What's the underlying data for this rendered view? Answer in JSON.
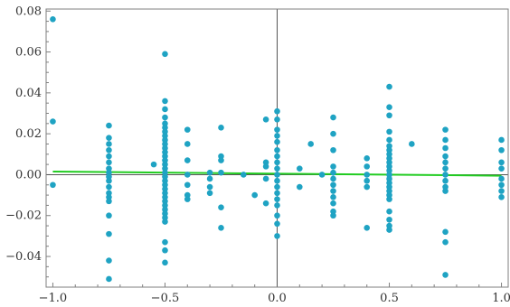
{
  "chart_data": {
    "type": "scatter",
    "title": "",
    "xlabel": "",
    "ylabel": "",
    "xlim": [
      -1.03,
      1.03
    ],
    "ylim": [
      -0.055,
      0.081
    ],
    "grid": false,
    "x_ticks": [
      {
        "value": -1.0,
        "label": "−1.0"
      },
      {
        "value": -0.5,
        "label": "−0.5"
      },
      {
        "value": 0.0,
        "label": "0.0"
      },
      {
        "value": 0.5,
        "label": "0.5"
      },
      {
        "value": 1.0,
        "label": "1.0"
      }
    ],
    "y_ticks": [
      {
        "value": 0.08,
        "label": "0.08"
      },
      {
        "value": 0.06,
        "label": "0.06"
      },
      {
        "value": 0.04,
        "label": "0.04"
      },
      {
        "value": 0.02,
        "label": "0.02"
      },
      {
        "value": 0.0,
        "label": "0.00"
      },
      {
        "value": -0.02,
        "label": "−0.02"
      },
      {
        "value": -0.04,
        "label": "−0.04"
      }
    ],
    "point_color": "#1fa3c3",
    "fit_color": "#22cc22",
    "fit_line": {
      "x": [
        -1.0,
        1.0
      ],
      "y": [
        0.0015,
        -0.0005
      ]
    },
    "points": [
      [
        -1.0,
        0.076
      ],
      [
        -1.0,
        0.026
      ],
      [
        -1.0,
        -0.005
      ],
      [
        -0.75,
        0.024
      ],
      [
        -0.75,
        0.018
      ],
      [
        -0.75,
        0.015
      ],
      [
        -0.75,
        0.012
      ],
      [
        -0.75,
        0.009
      ],
      [
        -0.75,
        0.006
      ],
      [
        -0.75,
        0.003
      ],
      [
        -0.75,
        0.001
      ],
      [
        -0.75,
        -0.001
      ],
      [
        -0.75,
        -0.003
      ],
      [
        -0.75,
        -0.006
      ],
      [
        -0.75,
        -0.009
      ],
      [
        -0.75,
        -0.011
      ],
      [
        -0.75,
        -0.013
      ],
      [
        -0.75,
        -0.02
      ],
      [
        -0.75,
        -0.029
      ],
      [
        -0.75,
        -0.042
      ],
      [
        -0.75,
        -0.051
      ],
      [
        -0.55,
        0.005
      ],
      [
        -0.5,
        0.059
      ],
      [
        -0.5,
        0.036
      ],
      [
        -0.5,
        0.032
      ],
      [
        -0.5,
        0.028
      ],
      [
        -0.5,
        0.025
      ],
      [
        -0.5,
        0.023
      ],
      [
        -0.5,
        0.021
      ],
      [
        -0.5,
        0.019
      ],
      [
        -0.5,
        0.017
      ],
      [
        -0.5,
        0.015
      ],
      [
        -0.5,
        0.013
      ],
      [
        -0.5,
        0.011
      ],
      [
        -0.5,
        0.009
      ],
      [
        -0.5,
        0.007
      ],
      [
        -0.5,
        0.005
      ],
      [
        -0.5,
        0.003
      ],
      [
        -0.5,
        0.001
      ],
      [
        -0.5,
        -0.001
      ],
      [
        -0.5,
        -0.003
      ],
      [
        -0.5,
        -0.005
      ],
      [
        -0.5,
        -0.007
      ],
      [
        -0.5,
        -0.009
      ],
      [
        -0.5,
        -0.011
      ],
      [
        -0.5,
        -0.013
      ],
      [
        -0.5,
        -0.015
      ],
      [
        -0.5,
        -0.017
      ],
      [
        -0.5,
        -0.019
      ],
      [
        -0.5,
        -0.021
      ],
      [
        -0.5,
        -0.023
      ],
      [
        -0.5,
        -0.033
      ],
      [
        -0.5,
        -0.037
      ],
      [
        -0.5,
        -0.043
      ],
      [
        -0.4,
        0.022
      ],
      [
        -0.4,
        0.015
      ],
      [
        -0.4,
        0.007
      ],
      [
        -0.4,
        0.0
      ],
      [
        -0.4,
        -0.005
      ],
      [
        -0.4,
        -0.01
      ],
      [
        -0.4,
        -0.012
      ],
      [
        -0.3,
        0.001
      ],
      [
        -0.3,
        -0.002
      ],
      [
        -0.3,
        -0.006
      ],
      [
        -0.3,
        -0.009
      ],
      [
        -0.25,
        0.023
      ],
      [
        -0.25,
        0.009
      ],
      [
        -0.25,
        0.007
      ],
      [
        -0.25,
        0.001
      ],
      [
        -0.25,
        -0.016
      ],
      [
        -0.25,
        -0.026
      ],
      [
        -0.15,
        0.0
      ],
      [
        -0.1,
        -0.01
      ],
      [
        -0.05,
        0.027
      ],
      [
        -0.05,
        0.006
      ],
      [
        -0.05,
        0.004
      ],
      [
        -0.05,
        -0.002
      ],
      [
        -0.05,
        -0.014
      ],
      [
        0.0,
        0.031
      ],
      [
        0.0,
        0.027
      ],
      [
        0.0,
        0.022
      ],
      [
        0.0,
        0.019
      ],
      [
        0.0,
        0.016
      ],
      [
        0.0,
        0.012
      ],
      [
        0.0,
        0.009
      ],
      [
        0.0,
        0.006
      ],
      [
        0.0,
        0.003
      ],
      [
        0.0,
        0.0
      ],
      [
        0.0,
        -0.003
      ],
      [
        0.0,
        -0.006
      ],
      [
        0.0,
        -0.009
      ],
      [
        0.0,
        -0.012
      ],
      [
        0.0,
        -0.015
      ],
      [
        0.0,
        -0.02
      ],
      [
        0.0,
        -0.024
      ],
      [
        0.0,
        -0.03
      ],
      [
        0.1,
        0.003
      ],
      [
        0.1,
        -0.006
      ],
      [
        0.15,
        0.015
      ],
      [
        0.2,
        0.0
      ],
      [
        0.25,
        0.028
      ],
      [
        0.25,
        0.02
      ],
      [
        0.25,
        0.012
      ],
      [
        0.25,
        0.004
      ],
      [
        0.25,
        0.001
      ],
      [
        0.25,
        -0.002
      ],
      [
        0.25,
        -0.005
      ],
      [
        0.25,
        -0.008
      ],
      [
        0.25,
        -0.011
      ],
      [
        0.25,
        -0.014
      ],
      [
        0.25,
        -0.018
      ],
      [
        0.25,
        -0.02
      ],
      [
        0.4,
        0.008
      ],
      [
        0.4,
        0.004
      ],
      [
        0.4,
        0.0
      ],
      [
        0.4,
        -0.003
      ],
      [
        0.4,
        -0.006
      ],
      [
        0.4,
        -0.026
      ],
      [
        0.5,
        0.043
      ],
      [
        0.5,
        0.033
      ],
      [
        0.5,
        0.029
      ],
      [
        0.5,
        0.021
      ],
      [
        0.5,
        0.017
      ],
      [
        0.5,
        0.014
      ],
      [
        0.5,
        0.012
      ],
      [
        0.5,
        0.01
      ],
      [
        0.5,
        0.008
      ],
      [
        0.5,
        0.006
      ],
      [
        0.5,
        0.004
      ],
      [
        0.5,
        0.002
      ],
      [
        0.5,
        0.0
      ],
      [
        0.5,
        -0.002
      ],
      [
        0.5,
        -0.004
      ],
      [
        0.5,
        -0.006
      ],
      [
        0.5,
        -0.008
      ],
      [
        0.5,
        -0.01
      ],
      [
        0.5,
        -0.012
      ],
      [
        0.5,
        -0.018
      ],
      [
        0.5,
        -0.022
      ],
      [
        0.5,
        -0.025
      ],
      [
        0.5,
        -0.027
      ],
      [
        0.6,
        0.015
      ],
      [
        0.75,
        0.022
      ],
      [
        0.75,
        0.017
      ],
      [
        0.75,
        0.013
      ],
      [
        0.75,
        0.009
      ],
      [
        0.75,
        0.006
      ],
      [
        0.75,
        0.003
      ],
      [
        0.75,
        0.0
      ],
      [
        0.75,
        -0.003
      ],
      [
        0.75,
        -0.006
      ],
      [
        0.75,
        -0.008
      ],
      [
        0.75,
        -0.028
      ],
      [
        0.75,
        -0.033
      ],
      [
        0.75,
        -0.049
      ],
      [
        1.0,
        0.017
      ],
      [
        1.0,
        0.012
      ],
      [
        1.0,
        0.006
      ],
      [
        1.0,
        0.003
      ],
      [
        1.0,
        -0.002
      ],
      [
        1.0,
        -0.005
      ],
      [
        1.0,
        -0.008
      ],
      [
        1.0,
        -0.011
      ]
    ]
  }
}
